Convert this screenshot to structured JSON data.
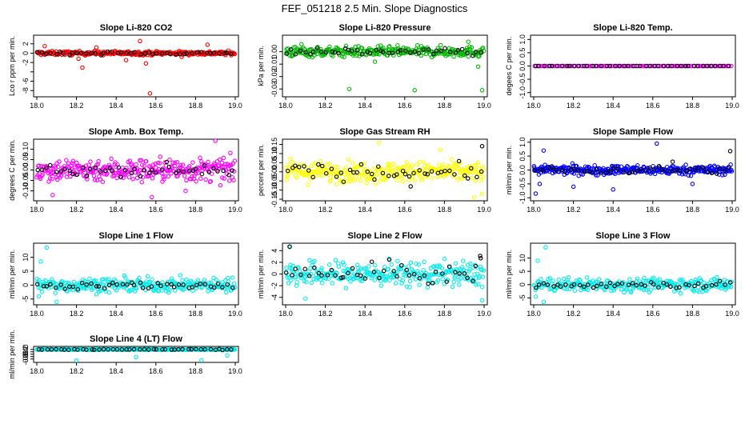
{
  "figure": {
    "title": "FEF_051218  2.5 Min. Slope Diagnostics"
  },
  "chart_data": [
    {
      "type": "scatter",
      "title": "Slope Li-820 CO2",
      "xlabel": "",
      "ylabel": "Lco r ppm per min.",
      "xlim": [
        18.0,
        19.0
      ],
      "ylim": [
        -9,
        3.5
      ],
      "xticks": [
        18.0,
        18.2,
        18.4,
        18.6,
        18.8,
        19.0
      ],
      "yticks": [
        2,
        0,
        -2,
        -4,
        -6,
        -8
      ],
      "ytick_labels": [
        "2",
        "0",
        "-2",
        "",
        "-6",
        "-8"
      ],
      "series": [
        {
          "color": "#ff0000",
          "n": 300,
          "center": 0,
          "spread": 0.3,
          "outliers": [
            [
              18.04,
              1.5
            ],
            [
              18.21,
              -1.2
            ],
            [
              18.23,
              -3.1
            ],
            [
              18.3,
              1.2
            ],
            [
              18.52,
              2.6
            ],
            [
              18.55,
              -2.2
            ],
            [
              18.57,
              -8.6
            ],
            [
              18.86,
              1.8
            ],
            [
              18.73,
              -0.8
            ],
            [
              18.45,
              -1.5
            ]
          ]
        },
        {
          "color": "#000000",
          "n": 45,
          "center": 0,
          "spread": 0.25,
          "outliers": []
        }
      ]
    },
    {
      "type": "scatter",
      "title": "Slope Li-820 Pressure",
      "xlabel": "",
      "ylabel": "kPa per min.",
      "xlim": [
        18.0,
        19.0
      ],
      "ylim": [
        -0.035,
        0.012
      ],
      "xticks": [
        18.0,
        18.2,
        18.4,
        18.6,
        18.8,
        19.0
      ],
      "yticks": [
        0.0,
        -0.01,
        -0.02,
        -0.03
      ],
      "ytick_labels": [
        "0.00",
        "-0.01",
        "-0.02",
        "-0.03"
      ],
      "series": [
        {
          "color": "#00bb00",
          "n": 300,
          "center": 0,
          "spread": 0.003,
          "outliers": [
            [
              18.08,
              0.006
            ],
            [
              18.32,
              -0.03
            ],
            [
              18.65,
              -0.031
            ],
            [
              18.92,
              0.008
            ],
            [
              18.99,
              -0.031
            ],
            [
              18.97,
              -0.012
            ],
            [
              18.45,
              -0.008
            ]
          ]
        },
        {
          "color": "#000000",
          "n": 45,
          "center": 0,
          "spread": 0.002,
          "outliers": []
        }
      ]
    },
    {
      "type": "scatter",
      "title": "Slope Li-820 Temp.",
      "xlabel": "",
      "ylabel": "degees C per min.",
      "xlim": [
        18.0,
        19.0
      ],
      "ylim": [
        -1.1,
        1.1
      ],
      "xticks": [
        18.0,
        18.2,
        18.4,
        18.6,
        18.8,
        19.0
      ],
      "yticks": [
        1.0,
        0.5,
        0.0,
        -0.5,
        -1.0
      ],
      "ytick_labels": [
        "1.0",
        "0.5",
        "0.0",
        "-0.5",
        "-1.0"
      ],
      "series": [
        {
          "color": "#ff00ff",
          "n": 120,
          "center": 0,
          "spread": 0,
          "outliers": []
        },
        {
          "color": "#000000",
          "n": 45,
          "center": 0,
          "spread": 0,
          "outliers": []
        }
      ]
    },
    {
      "type": "scatter",
      "title": "Slope Amb. Box Temp.",
      "xlabel": "",
      "ylabel": "degrees C per min.",
      "xlim": [
        18.0,
        19.0
      ],
      "ylim": [
        -0.14,
        0.14
      ],
      "xticks": [
        18.0,
        18.2,
        18.4,
        18.6,
        18.8,
        19.0
      ],
      "yticks": [
        0.1,
        0.05,
        0.0,
        -0.05,
        -0.1
      ],
      "ytick_labels": [
        "0.10",
        "0.05",
        "0.00",
        "-0.05",
        "-0.10"
      ],
      "series": [
        {
          "color": "#ff00ff",
          "n": 320,
          "center": 0,
          "spread": 0.04,
          "outliers": [
            [
              18.08,
              -0.12
            ],
            [
              18.58,
              -0.13
            ],
            [
              18.9,
              0.14
            ],
            [
              18.75,
              -0.1
            ]
          ]
        },
        {
          "color": "#000000",
          "n": 45,
          "center": 0,
          "spread": 0.02,
          "outliers": []
        }
      ]
    },
    {
      "type": "scatter",
      "title": "Slope Gas Stream RH",
      "xlabel": "",
      "ylabel": "percent per min.",
      "xlim": [
        18.0,
        19.0
      ],
      "ylim": [
        -0.15,
        0.17
      ],
      "xticks": [
        18.0,
        18.2,
        18.4,
        18.6,
        18.8,
        19.0
      ],
      "yticks": [
        0.15,
        0.1,
        0.05,
        0.0,
        -0.05,
        -0.1,
        -0.15
      ],
      "ytick_labels": [
        "0.15",
        "0.10",
        "0.05",
        "0.00",
        "-0.05",
        "-0.10",
        "-0.15"
      ],
      "series": [
        {
          "color": "#ffff00",
          "n": 320,
          "center": 0,
          "spread": 0.04,
          "outliers": [
            [
              18.47,
              0.16
            ],
            [
              18.78,
              0.12
            ],
            [
              18.95,
              -0.14
            ],
            [
              18.99,
              -0.12
            ]
          ]
        },
        {
          "color": "#000000",
          "n": 45,
          "center": 0,
          "spread": 0.03,
          "outliers": [
            [
              18.99,
              0.14
            ],
            [
              18.63,
              -0.08
            ]
          ]
        }
      ]
    },
    {
      "type": "scatter",
      "title": "Slope Sample Flow",
      "xlabel": "",
      "ylabel": "ml/min per min.",
      "xlim": [
        18.0,
        19.0
      ],
      "ylim": [
        -1.05,
        1.05
      ],
      "xticks": [
        18.0,
        18.2,
        18.4,
        18.6,
        18.8,
        19.0
      ],
      "yticks": [
        1.0,
        0.5,
        0.0,
        -0.5,
        -1.0
      ],
      "ytick_labels": [
        "1.0",
        "0.5",
        "0.0",
        "-0.5",
        "-1.0"
      ],
      "series": [
        {
          "color": "#0000ff",
          "n": 320,
          "center": 0,
          "spread": 0.12,
          "outliers": [
            [
              18.01,
              -0.85
            ],
            [
              18.05,
              0.7
            ],
            [
              18.2,
              -0.6
            ],
            [
              18.4,
              -0.7
            ],
            [
              18.62,
              0.95
            ],
            [
              18.8,
              -0.5
            ],
            [
              18.03,
              -0.5
            ]
          ]
        },
        {
          "color": "#000000",
          "n": 45,
          "center": 0,
          "spread": 0.1,
          "outliers": [
            [
              18.99,
              0.68
            ],
            [
              18.7,
              0.3
            ]
          ]
        }
      ]
    },
    {
      "type": "scatter",
      "title": "Slope Line 1 Flow",
      "xlabel": "",
      "ylabel": "ml/min per min.",
      "xlim": [
        18.0,
        19.0
      ],
      "ylim": [
        -6.5,
        14.5
      ],
      "xticks": [
        18.0,
        18.2,
        18.4,
        18.6,
        18.8,
        19.0
      ],
      "yticks": [
        10,
        5,
        0,
        -5
      ],
      "ytick_labels": [
        "10",
        "5",
        "0",
        "-5"
      ],
      "series": [
        {
          "color": "#00eeee",
          "n": 280,
          "center": 0,
          "spread": 1.8,
          "outliers": [
            [
              18.05,
              13.5
            ],
            [
              18.02,
              8.5
            ],
            [
              18.1,
              -6
            ],
            [
              18.01,
              -4
            ]
          ]
        },
        {
          "color": "#000000",
          "n": 45,
          "center": 0,
          "spread": 1.0,
          "outliers": []
        }
      ]
    },
    {
      "type": "scatter",
      "title": "Slope Line 2 Flow",
      "xlabel": "",
      "ylabel": "ml/min per min.",
      "xlim": [
        18.0,
        19.0
      ],
      "ylim": [
        -5,
        5
      ],
      "xticks": [
        18.0,
        18.2,
        18.4,
        18.6,
        18.8,
        19.0
      ],
      "yticks": [
        4,
        2,
        0,
        -2,
        -4
      ],
      "ytick_labels": [
        "4",
        "2",
        "0",
        "-2",
        "-4"
      ],
      "series": [
        {
          "color": "#00eeee",
          "n": 300,
          "center": 0,
          "spread": 1.5,
          "outliers": [
            [
              18.02,
              4.6
            ],
            [
              18.99,
              -4.5
            ],
            [
              18.1,
              -4.2
            ]
          ]
        },
        {
          "color": "#000000",
          "n": 45,
          "center": 0,
          "spread": 1.3,
          "outliers": [
            [
              18.02,
              4.7
            ],
            [
              18.98,
              3.1
            ]
          ]
        }
      ]
    },
    {
      "type": "scatter",
      "title": "Slope Line 3 Flow",
      "xlabel": "",
      "ylabel": "ml/min per min.",
      "xlim": [
        18.0,
        19.0
      ],
      "ylim": [
        -7,
        15
      ],
      "xticks": [
        18.0,
        18.2,
        18.4,
        18.6,
        18.8,
        19.0
      ],
      "yticks": [
        10,
        5,
        0,
        -5
      ],
      "ytick_labels": [
        "10",
        "5",
        "0",
        "-5"
      ],
      "series": [
        {
          "color": "#00eeee",
          "n": 280,
          "center": 0,
          "spread": 1.8,
          "outliers": [
            [
              18.06,
              14
            ],
            [
              18.02,
              9
            ],
            [
              18.05,
              -6.5
            ],
            [
              18.01,
              -4.5
            ]
          ]
        },
        {
          "color": "#000000",
          "n": 45,
          "center": 0,
          "spread": 1.0,
          "outliers": []
        }
      ]
    },
    {
      "type": "scatter",
      "title": "Slope Line 4 (LT) Flow",
      "xlabel": "",
      "ylabel": "ml/min per min.",
      "xlim": [
        18.0,
        19.0
      ],
      "ylim": [
        -0.95,
        0.12
      ],
      "xticks": [
        18.0,
        18.2,
        18.4,
        18.6,
        18.8,
        19.0
      ],
      "yticks": [
        0.0,
        -0.2,
        -0.4,
        -0.6,
        -0.8
      ],
      "ytick_labels": [
        "0.0",
        "-0.2",
        "-0.4",
        "-0.6",
        "-0.8"
      ],
      "series": [
        {
          "color": "#00eeee",
          "n": 300,
          "center": 0.0,
          "spread": 0.03,
          "outliers": [
            [
              18.2,
              -0.92
            ],
            [
              18.5,
              -0.64
            ],
            [
              18.83,
              -0.9
            ],
            [
              18.96,
              -0.5
            ]
          ]
        },
        {
          "color": "#000000",
          "n": 45,
          "center": 0.0,
          "spread": 0.025,
          "outliers": []
        }
      ]
    }
  ]
}
